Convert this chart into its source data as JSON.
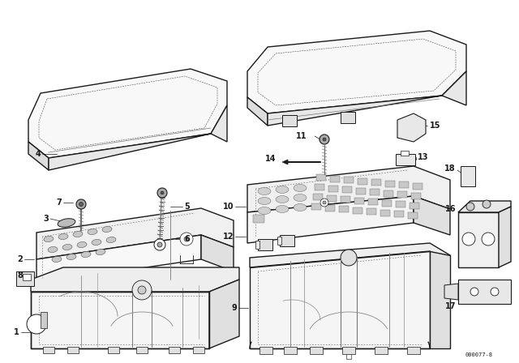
{
  "bg_color": "#ffffff",
  "line_color": "#1a1a1a",
  "diagram_id": "000077-8",
  "fig_width": 6.4,
  "fig_height": 4.48,
  "dpi": 100,
  "lw_main": 1.0,
  "lw_thin": 0.5,
  "lw_dashed": 0.5,
  "gray_light": "#cccccc",
  "gray_mid": "#aaaaaa",
  "gray_dark": "#888888"
}
